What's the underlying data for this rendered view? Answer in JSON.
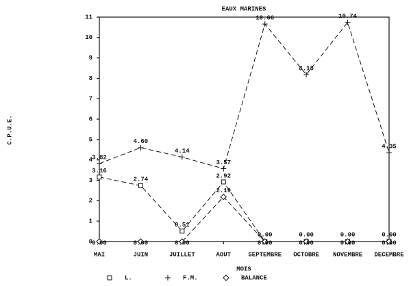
{
  "chart_data": {
    "type": "line",
    "title": "EAUX MARINES",
    "x_label": "MOIS",
    "y_label": "C.P.U.E.",
    "categories": [
      "MAI",
      "JUIN",
      "JUILLET",
      "AOUT",
      "SEPTEMBRE",
      "OCTOBRE",
      "NOVEMBRE",
      "DECEMBRE"
    ],
    "series": [
      {
        "name": "L.",
        "color": "#111111",
        "marker": "square",
        "values": [
          3.16,
          2.74,
          0.51,
          2.92,
          0,
          0,
          0,
          0
        ],
        "value_labels": [
          "3.16",
          "2.74",
          "0.51",
          "2.92",
          "0.00",
          "0.00",
          "0.00",
          "0.00"
        ]
      },
      {
        "name": "F.M.",
        "color": "#111111",
        "marker": "plus",
        "values": [
          3.82,
          4.6,
          4.14,
          3.57,
          10.66,
          8.18,
          10.74,
          4.35
        ],
        "value_labels": [
          "3.82",
          "4.60",
          "4.14",
          "3.57",
          "10.66",
          "8.18",
          "10.74",
          "4.35"
        ]
      },
      {
        "name": "BALANCE",
        "color": "#111111",
        "marker": "diamond",
        "values": [
          0,
          0,
          0,
          2.19,
          0,
          0,
          0,
          0
        ],
        "value_labels": [
          "0.00",
          "0.00",
          "0.00",
          "2.19",
          "0.00",
          "0.00",
          "0.00",
          "0.00"
        ]
      }
    ],
    "ylim": [
      0,
      11
    ],
    "yticks": [
      0,
      1,
      2,
      3,
      4,
      5,
      6,
      7,
      8,
      9,
      10,
      11
    ],
    "legend": "bottom"
  }
}
